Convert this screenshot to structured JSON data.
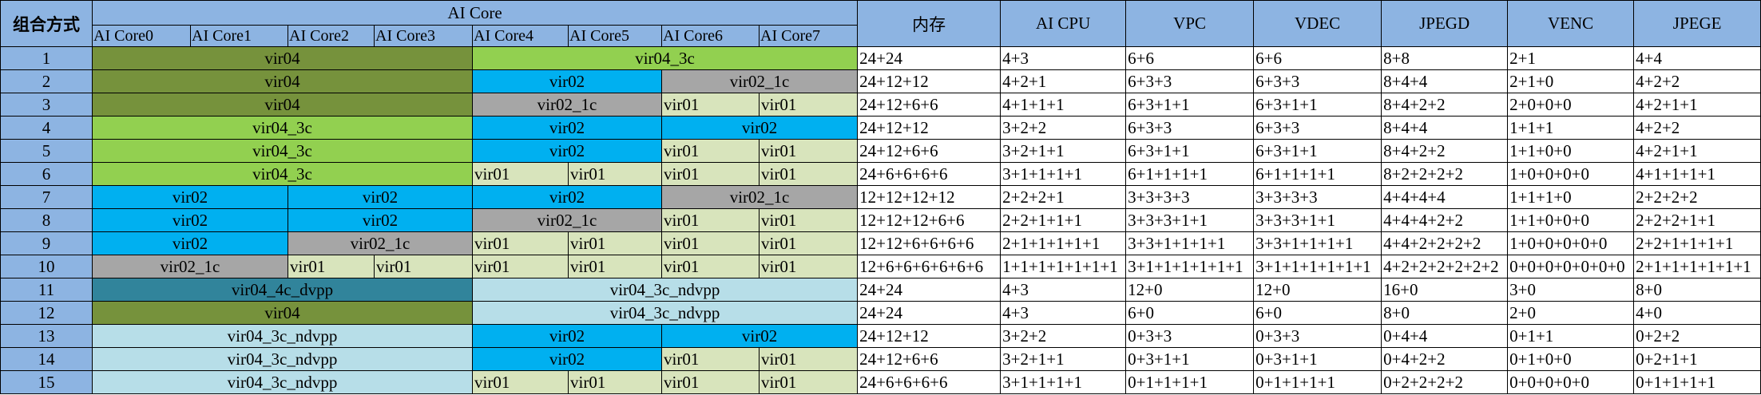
{
  "header": {
    "combo_label": "组合方式",
    "ai_core_label": "AI Core",
    "cores": [
      "AI Core0",
      "AI Core1",
      "AI Core2",
      "AI Core3",
      "AI Core4",
      "AI Core5",
      "AI Core6",
      "AI Core7"
    ],
    "resources": [
      "内存",
      "AI CPU",
      "VPC",
      "VDEC",
      "JPEGD",
      "VENC",
      "JPEGE"
    ]
  },
  "colors": {
    "header_bg": "#8db4e2",
    "vir04": "#76923c",
    "vir04_3c": "#92d050",
    "vir02": "#00b0f0",
    "vir02_1c": "#a6a6a6",
    "vir01": "#d8e4bc",
    "vir04_4c_dvpp": "#31849b",
    "vir04_3c_ndvpp": "#b7dee8"
  },
  "rows": [
    {
      "id": "1",
      "segments": [
        {
          "label": "vir04",
          "span": 4
        },
        {
          "label": "vir04_3c",
          "span": 4
        }
      ],
      "values": [
        "24+24",
        "4+3",
        "6+6",
        "6+6",
        "8+8",
        "2+1",
        "4+4"
      ]
    },
    {
      "id": "2",
      "segments": [
        {
          "label": "vir04",
          "span": 4
        },
        {
          "label": "vir02",
          "span": 2
        },
        {
          "label": "vir02_1c",
          "span": 2
        }
      ],
      "values": [
        "24+12+12",
        "4+2+1",
        "6+3+3",
        "6+3+3",
        "8+4+4",
        "2+1+0",
        "4+2+2"
      ]
    },
    {
      "id": "3",
      "segments": [
        {
          "label": "vir04",
          "span": 4
        },
        {
          "label": "vir02_1c",
          "span": 2
        },
        {
          "label": "vir01",
          "span": 1
        },
        {
          "label": "vir01",
          "span": 1
        }
      ],
      "values": [
        "24+12+6+6",
        "4+1+1+1",
        "6+3+1+1",
        "6+3+1+1",
        "8+4+2+2",
        "2+0+0+0",
        "4+2+1+1"
      ]
    },
    {
      "id": "4",
      "segments": [
        {
          "label": "vir04_3c",
          "span": 4
        },
        {
          "label": "vir02",
          "span": 2
        },
        {
          "label": "vir02",
          "span": 2
        }
      ],
      "values": [
        "24+12+12",
        "3+2+2",
        "6+3+3",
        "6+3+3",
        "8+4+4",
        "1+1+1",
        "4+2+2"
      ]
    },
    {
      "id": "5",
      "segments": [
        {
          "label": "vir04_3c",
          "span": 4
        },
        {
          "label": "vir02",
          "span": 2
        },
        {
          "label": "vir01",
          "span": 1
        },
        {
          "label": "vir01",
          "span": 1
        }
      ],
      "values": [
        "24+12+6+6",
        "3+2+1+1",
        "6+3+1+1",
        "6+3+1+1",
        "8+4+2+2",
        "1+1+0+0",
        "4+2+1+1"
      ]
    },
    {
      "id": "6",
      "segments": [
        {
          "label": "vir04_3c",
          "span": 4
        },
        {
          "label": "vir01",
          "span": 1
        },
        {
          "label": "vir01",
          "span": 1
        },
        {
          "label": "vir01",
          "span": 1
        },
        {
          "label": "vir01",
          "span": 1
        }
      ],
      "values": [
        "24+6+6+6+6",
        "3+1+1+1+1",
        "6+1+1+1+1",
        "6+1+1+1+1",
        "8+2+2+2+2",
        "1+0+0+0+0",
        "4+1+1+1+1"
      ]
    },
    {
      "id": "7",
      "segments": [
        {
          "label": "vir02",
          "span": 2
        },
        {
          "label": "vir02",
          "span": 2
        },
        {
          "label": "vir02",
          "span": 2
        },
        {
          "label": "vir02_1c",
          "span": 2
        }
      ],
      "values": [
        "12+12+12+12",
        "2+2+2+1",
        "3+3+3+3",
        "3+3+3+3",
        "4+4+4+4",
        "1+1+1+0",
        "2+2+2+2"
      ]
    },
    {
      "id": "8",
      "segments": [
        {
          "label": "vir02",
          "span": 2
        },
        {
          "label": "vir02",
          "span": 2
        },
        {
          "label": "vir02_1c",
          "span": 2
        },
        {
          "label": "vir01",
          "span": 1
        },
        {
          "label": "vir01",
          "span": 1
        }
      ],
      "values": [
        "12+12+12+6+6",
        "2+2+1+1+1",
        "3+3+3+1+1",
        "3+3+3+1+1",
        "4+4+4+2+2",
        "1+1+0+0+0",
        "2+2+2+1+1"
      ]
    },
    {
      "id": "9",
      "segments": [
        {
          "label": "vir02",
          "span": 2
        },
        {
          "label": "vir02_1c",
          "span": 2
        },
        {
          "label": "vir01",
          "span": 1
        },
        {
          "label": "vir01",
          "span": 1
        },
        {
          "label": "vir01",
          "span": 1
        },
        {
          "label": "vir01",
          "span": 1
        }
      ],
      "values": [
        "12+12+6+6+6+6",
        "2+1+1+1+1+1",
        "3+3+1+1+1+1",
        "3+3+1+1+1+1",
        "4+4+2+2+2+2",
        "1+0+0+0+0+0",
        "2+2+1+1+1+1"
      ]
    },
    {
      "id": "10",
      "segments": [
        {
          "label": "vir02_1c",
          "span": 2
        },
        {
          "label": "vir01",
          "span": 1
        },
        {
          "label": "vir01",
          "span": 1
        },
        {
          "label": "vir01",
          "span": 1
        },
        {
          "label": "vir01",
          "span": 1
        },
        {
          "label": "vir01",
          "span": 1
        },
        {
          "label": "vir01",
          "span": 1
        }
      ],
      "values": [
        "12+6+6+6+6+6+6",
        "1+1+1+1+1+1+1",
        "3+1+1+1+1+1+1",
        "3+1+1+1+1+1+1",
        "4+2+2+2+2+2+2",
        "0+0+0+0+0+0+0",
        "2+1+1+1+1+1+1"
      ]
    },
    {
      "id": "11",
      "segments": [
        {
          "label": "vir04_4c_dvpp",
          "span": 4
        },
        {
          "label": "vir04_3c_ndvpp",
          "span": 4
        }
      ],
      "values": [
        "24+24",
        "4+3",
        "12+0",
        "12+0",
        "16+0",
        "3+0",
        "8+0"
      ]
    },
    {
      "id": "12",
      "segments": [
        {
          "label": "vir04",
          "span": 4
        },
        {
          "label": "vir04_3c_ndvpp",
          "span": 4
        }
      ],
      "values": [
        "24+24",
        "4+3",
        "6+0",
        "6+0",
        "8+0",
        "2+0",
        "4+0"
      ]
    },
    {
      "id": "13",
      "segments": [
        {
          "label": "vir04_3c_ndvpp",
          "span": 4
        },
        {
          "label": "vir02",
          "span": 2
        },
        {
          "label": "vir02",
          "span": 2
        }
      ],
      "values": [
        "24+12+12",
        "3+2+2",
        "0+3+3",
        "0+3+3",
        "0+4+4",
        "0+1+1",
        "0+2+2"
      ]
    },
    {
      "id": "14",
      "segments": [
        {
          "label": "vir04_3c_ndvpp",
          "span": 4
        },
        {
          "label": "vir02",
          "span": 2
        },
        {
          "label": "vir01",
          "span": 1
        },
        {
          "label": "vir01",
          "span": 1
        }
      ],
      "values": [
        "24+12+6+6",
        "3+2+1+1",
        "0+3+1+1",
        "0+3+1+1",
        "0+4+2+2",
        "0+1+0+0",
        "0+2+1+1"
      ]
    },
    {
      "id": "15",
      "segments": [
        {
          "label": "vir04_3c_ndvpp",
          "span": 4
        },
        {
          "label": "vir01",
          "span": 1
        },
        {
          "label": "vir01",
          "span": 1
        },
        {
          "label": "vir01",
          "span": 1
        },
        {
          "label": "vir01",
          "span": 1
        }
      ],
      "values": [
        "24+6+6+6+6",
        "3+1+1+1+1",
        "0+1+1+1+1",
        "0+1+1+1+1",
        "0+2+2+2+2",
        "0+0+0+0+0",
        "0+1+1+1+1"
      ]
    }
  ]
}
